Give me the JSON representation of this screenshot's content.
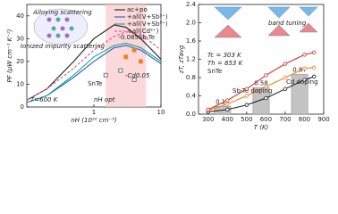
{
  "chart_data": [
    {
      "type": "line",
      "xscale": "log",
      "ylabel": "PF (μW cm⁻¹ K⁻²)",
      "xlabel": "nH (10²⁰ cm⁻³)",
      "xlim": [
        0.1,
        10
      ],
      "xticks": [
        1,
        10
      ],
      "ylim": [
        0,
        45
      ],
      "yticks": [
        0,
        10,
        20,
        30,
        40
      ],
      "x": [
        0.1,
        0.2,
        0.5,
        1,
        2,
        3,
        5,
        10
      ],
      "series": [
        {
          "name": "ac+po",
          "color": "#222222",
          "values": [
            3,
            8,
            20,
            30,
            36,
            35,
            30,
            21
          ]
        },
        {
          "name": "+all(V+Sb³⁺)",
          "color": "#2060c0",
          "values": [
            2,
            5,
            13,
            20,
            26,
            27,
            25,
            19
          ]
        },
        {
          "name": "+all(V+Sb⁵⁺)",
          "color": "#1aa090",
          "values": [
            2,
            5,
            14,
            22,
            27,
            28,
            26,
            20
          ]
        },
        {
          "name": "+all(Cd²⁺)",
          "color": "#e0508a",
          "dashed": true,
          "values": [
            3,
            8,
            17,
            25,
            31,
            33,
            32,
            25
          ]
        }
      ],
      "points": [
        {
          "name": "SnTe",
          "color": "#555555",
          "x": [
            1.5,
            2.5,
            4
          ],
          "y": [
            14,
            16,
            12
          ]
        },
        {
          "name": "-0.085Sb-Te",
          "color": "#f08020",
          "x": [
            3,
            4,
            5
          ],
          "y": [
            22,
            25,
            20
          ]
        }
      ],
      "shaded_xrange": [
        1.5,
        6
      ],
      "annotations": [
        "Alloying scattering",
        "Ionized impurity scattering",
        "T=600 K",
        "nH opt",
        "-Cd0.05"
      ]
    },
    {
      "type": "line",
      "ylabel": "zT, zTavg",
      "xlabel": "T (K)",
      "xlim": [
        250,
        900
      ],
      "xticks": [
        300,
        400,
        500,
        600,
        700,
        800,
        900
      ],
      "ylim": [
        0,
        2.4
      ],
      "yticks": [
        {
          "value": 0,
          "label": "0.0"
        },
        0.4,
        0.8,
        1.2,
        1.6,
        {
          "value": 2,
          "label": "2.0"
        },
        2.4
      ],
      "x": [
        300,
        400,
        500,
        600,
        700,
        800,
        850
      ],
      "series": [
        {
          "name": "SnTe",
          "color": "#222222",
          "values": [
            0.05,
            0.1,
            0.2,
            0.35,
            0.55,
            0.75,
            0.82
          ]
        },
        {
          "name": "Sb-Te doping",
          "color": "#f08020",
          "values": [
            0.08,
            0.22,
            0.4,
            0.6,
            0.8,
            1.0,
            1.02
          ]
        },
        {
          "name": "Cd doping",
          "color": "#d03030",
          "values": [
            0.1,
            0.3,
            0.55,
            0.85,
            1.1,
            1.3,
            1.35
          ]
        }
      ],
      "bars": {
        "x": [
          375,
          575,
          775
        ],
        "values": [
          0.17,
          0.58,
          0.87
        ],
        "color": "#c4c4c4"
      },
      "annotations": [
        "band tuning",
        "Tc = 303 K",
        "Th = 853 K"
      ]
    }
  ]
}
